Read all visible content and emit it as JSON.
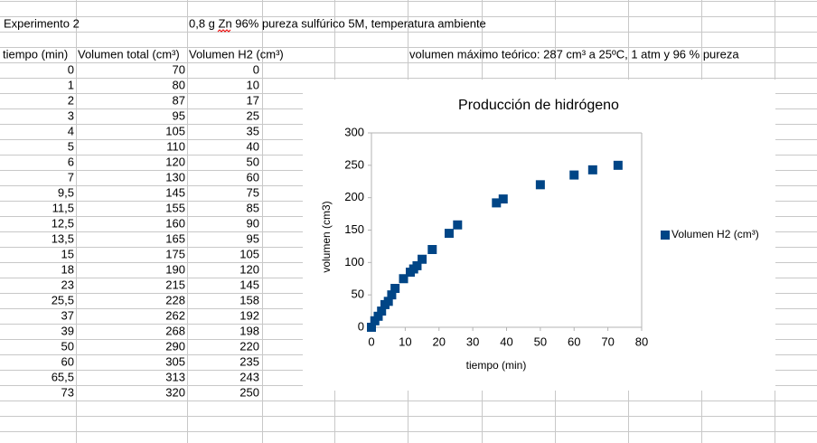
{
  "sheet": {
    "title": "Experimento 2",
    "description": "0,8 g Zn 96% pureza sulfúrico 5M, temperatura ambiente",
    "note": "volumen máximo teórico: 287 cm³ a 25ºC, 1 atm y 96 % pureza",
    "table": {
      "headers": [
        "tiempo (min)",
        "Volumen total (cm³)",
        "Volumen H2 (cm³)"
      ],
      "rows": [
        [
          "0",
          "70",
          "0"
        ],
        [
          "1",
          "80",
          "10"
        ],
        [
          "2",
          "87",
          "17"
        ],
        [
          "3",
          "95",
          "25"
        ],
        [
          "4",
          "105",
          "35"
        ],
        [
          "5",
          "110",
          "40"
        ],
        [
          "6",
          "120",
          "50"
        ],
        [
          "7",
          "130",
          "60"
        ],
        [
          "9,5",
          "145",
          "75"
        ],
        [
          "11,5",
          "155",
          "85"
        ],
        [
          "12,5",
          "160",
          "90"
        ],
        [
          "13,5",
          "165",
          "95"
        ],
        [
          "15",
          "175",
          "105"
        ],
        [
          "18",
          "190",
          "120"
        ],
        [
          "23",
          "215",
          "145"
        ],
        [
          "25,5",
          "228",
          "158"
        ],
        [
          "37",
          "262",
          "192"
        ],
        [
          "39",
          "268",
          "198"
        ],
        [
          "50",
          "290",
          "220"
        ],
        [
          "60",
          "305",
          "235"
        ],
        [
          "65,5",
          "313",
          "243"
        ],
        [
          "73",
          "320",
          "250"
        ]
      ]
    }
  },
  "chart_data": {
    "type": "scatter",
    "title": "Producción de hidrógeno",
    "x_label": "tiempo (min)",
    "y_label": "volumen (cm3)",
    "x": [
      0,
      1,
      2,
      3,
      4,
      5,
      6,
      7,
      9.5,
      11.5,
      12.5,
      13.5,
      15,
      18,
      23,
      25.5,
      37,
      39,
      50,
      60,
      65.5,
      73
    ],
    "series": [
      {
        "name": "Volumen H2 (cm³)",
        "color": "#004586",
        "values": [
          0,
          10,
          17,
          25,
          35,
          40,
          50,
          60,
          75,
          85,
          90,
          95,
          105,
          120,
          145,
          158,
          192,
          198,
          220,
          235,
          243,
          250
        ]
      }
    ],
    "xlim": [
      0,
      80
    ],
    "xticks": [
      0,
      10,
      20,
      30,
      40,
      50,
      60,
      70,
      80
    ],
    "ylim": [
      0,
      300
    ],
    "yticks": [
      0,
      50,
      100,
      150,
      200,
      250,
      300
    ],
    "legend": "right"
  }
}
